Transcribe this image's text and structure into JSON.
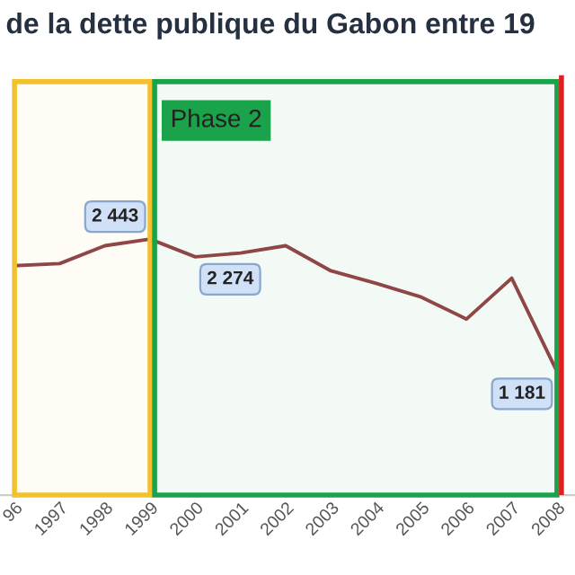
{
  "chart_data": {
    "type": "line",
    "title": "de la dette publique du Gabon entre 19",
    "categories": [
      "96",
      "1997",
      "1998",
      "1999",
      "2000",
      "2001",
      "2002",
      "2003",
      "2004",
      "2005",
      "2006",
      "2007",
      "2008"
    ],
    "series": [
      {
        "color": "#8e4646",
        "values": [
          2190,
          2210,
          2380,
          2443,
          2274,
          2310,
          2380,
          2140,
          2020,
          1890,
          1680,
          2070,
          1181
        ],
        "value_labels": [
          null,
          null,
          null,
          "2 443",
          "2 274",
          null,
          null,
          null,
          null,
          null,
          null,
          null,
          "1 181"
        ]
      }
    ],
    "tick_labels": "x",
    "legend": false,
    "marker": "none",
    "line_style": "solid",
    "bands": [
      {
        "axis": "x",
        "from": "96",
        "to": "1999",
        "label": null,
        "color": "#f2c12e"
      },
      {
        "axis": "x",
        "from": "1999",
        "to": "2008",
        "label": "Phase 2",
        "color": "#1aa34a"
      }
    ],
    "ref_lines": [
      {
        "axis": "x",
        "value": "2008",
        "label": null,
        "color": "#e02020"
      }
    ]
  }
}
